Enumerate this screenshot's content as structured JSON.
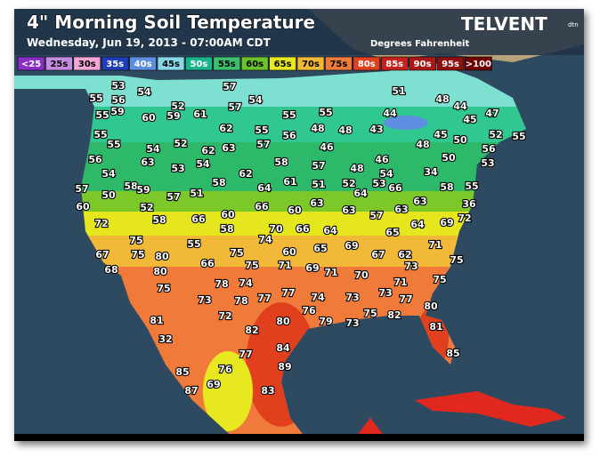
{
  "header": {
    "title": "4\" Morning Soil Temperature",
    "subtitle": "Wednesday, Jun 19, 2013 - 07:00AM CDT",
    "units": "Degrees Fahrenheit",
    "brand": "TELVENT",
    "badge": "dtn"
  },
  "legend": [
    {
      "label": "<25",
      "color": "#8a2fc4",
      "text": "#fff"
    },
    {
      "label": "25s",
      "color": "#c58be0",
      "text": "#000"
    },
    {
      "label": "30s",
      "color": "#f4a6d6",
      "text": "#000"
    },
    {
      "label": "35s",
      "color": "#1f3fb8",
      "text": "#fff"
    },
    {
      "label": "40s",
      "color": "#5d8ee0",
      "text": "#fff"
    },
    {
      "label": "45s",
      "color": "#86d8e8",
      "text": "#000"
    },
    {
      "label": "50s",
      "color": "#18b48a",
      "text": "#fff"
    },
    {
      "label": "55s",
      "color": "#3cc070",
      "text": "#000"
    },
    {
      "label": "60s",
      "color": "#6cc22a",
      "text": "#000"
    },
    {
      "label": "65s",
      "color": "#e8e820",
      "text": "#000"
    },
    {
      "label": "70s",
      "color": "#f2b838",
      "text": "#000"
    },
    {
      "label": "75s",
      "color": "#f07a3a",
      "text": "#000"
    },
    {
      "label": "80s",
      "color": "#e0401e",
      "text": "#fff"
    },
    {
      "label": "85s",
      "color": "#c82020",
      "text": "#fff"
    },
    {
      "label": "90s",
      "color": "#a81818",
      "text": "#fff"
    },
    {
      "label": "95s",
      "color": "#901010",
      "text": "#fff"
    },
    {
      "label": ">100",
      "color": "#700000",
      "text": "#fff"
    }
  ],
  "stations": [
    53,
    54,
    52,
    57,
    54,
    51,
    48,
    44,
    47,
    55,
    56,
    59,
    60,
    59,
    61,
    57,
    55,
    55,
    44,
    45,
    55,
    55,
    62,
    55,
    56,
    48,
    48,
    43,
    45,
    50,
    52,
    55,
    55,
    54,
    52,
    62,
    63,
    57,
    46,
    46,
    48,
    56,
    56,
    63,
    53,
    54,
    58,
    57,
    48,
    34,
    50,
    53,
    54,
    58,
    62,
    61,
    51,
    52,
    54,
    58,
    55,
    57,
    50,
    58,
    59,
    57,
    51,
    64,
    64,
    53,
    66,
    63,
    36,
    60,
    52,
    58,
    66,
    60,
    63,
    63,
    57,
    63,
    72,
    72,
    66,
    60,
    58,
    70,
    66,
    64,
    65,
    64,
    69,
    55,
    74,
    60,
    65,
    69,
    71,
    75,
    67,
    75,
    80,
    66,
    75,
    67,
    62,
    75,
    68,
    80,
    75,
    71,
    69,
    71,
    70,
    73,
    75,
    75,
    78,
    74,
    77,
    74,
    73,
    73,
    71,
    73,
    78,
    77,
    77,
    80,
    81,
    72,
    80,
    76,
    79,
    73,
    75,
    82,
    32,
    82,
    81,
    77,
    84,
    85,
    85,
    76,
    89,
    87,
    69,
    83
  ]
}
